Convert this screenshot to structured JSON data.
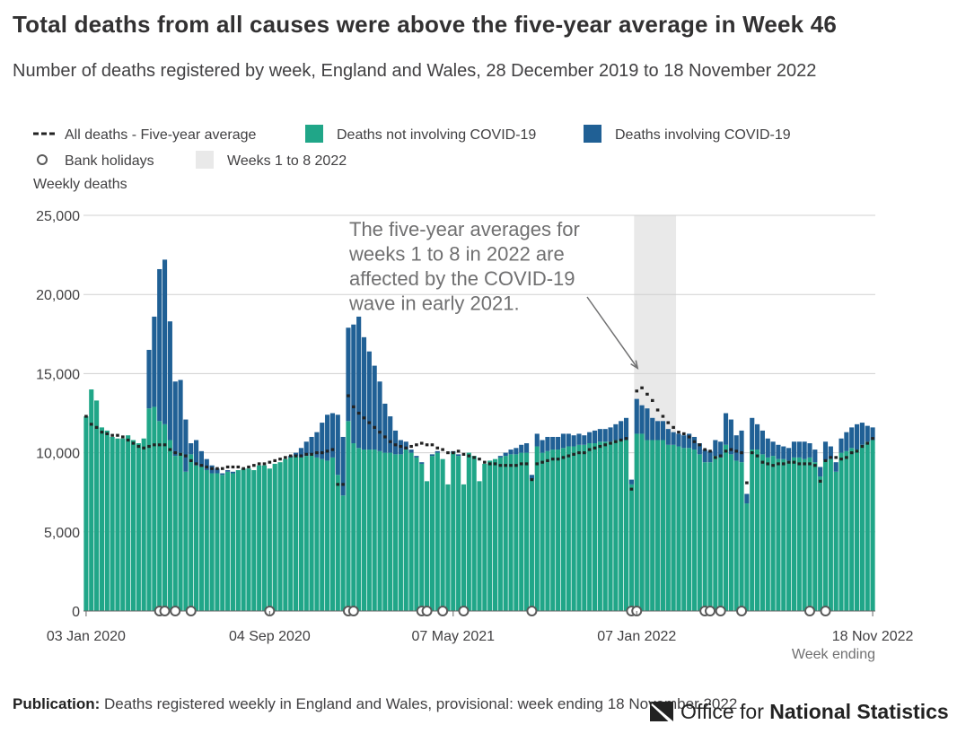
{
  "header": {
    "title": "Total deaths from all causes were above the five-year average in Week 46",
    "subtitle": "Number of deaths registered by week, England and Wales, 28 December 2019 to 18 November 2022"
  },
  "footer": {
    "publication_label": "Publication:",
    "publication_text": "Deaths registered weekly in England and Wales, provisional: week ending 18 November 2022",
    "logo_prefix": "Office for",
    "logo_strong": "National Statistics"
  },
  "colors": {
    "not_covid": "#20a688",
    "covid": "#206095",
    "average": "#222222",
    "shade": "#e9e9e9",
    "grid": "#d0d0d0"
  },
  "chart_data": {
    "type": "bar",
    "stacked": true,
    "legend": {
      "placement": "top-left",
      "items": [
        {
          "key": "average",
          "label": "All deaths - Five-year average",
          "symbol": "dashed-line"
        },
        {
          "key": "not_covid",
          "label": "Deaths not involving COVID-19",
          "symbol": "square"
        },
        {
          "key": "covid",
          "label": "Deaths involving COVID-19",
          "symbol": "square"
        },
        {
          "key": "holiday",
          "label": "Bank holidays",
          "symbol": "circle"
        },
        {
          "key": "shade",
          "label": "Weeks 1 to 8 2022",
          "symbol": "square"
        }
      ]
    },
    "ylabel": "Weekly deaths",
    "xlabel": "Week ending",
    "ylim": [
      0,
      25000
    ],
    "yticks": [
      0,
      5000,
      10000,
      15000,
      20000,
      25000
    ],
    "ytick_labels": [
      "0",
      "5,000",
      "10,000",
      "15,000",
      "20,000",
      "25,000"
    ],
    "xtick_labels": [
      {
        "week": 1,
        "label": "03 Jan 2020"
      },
      {
        "week": 36,
        "label": "04 Sep 2020"
      },
      {
        "week": 71,
        "label": "07 May 2021"
      },
      {
        "week": 106,
        "label": "07 Jan 2022"
      },
      {
        "week": 151,
        "label": "18 Nov 2022"
      }
    ],
    "n_weeks": 151,
    "shaded_weeks": [
      106,
      113
    ],
    "annotation": {
      "lines": [
        "The five-year averages for",
        "weeks 1 to 8 in 2022 are",
        "affected by the COVID-19",
        "wave in early 2021."
      ],
      "arrow_to_week": 106,
      "arrow_to_value": 15000
    },
    "bank_holiday_weeks": [
      15,
      16,
      18,
      21,
      36,
      51,
      52,
      65,
      66,
      69,
      73,
      86,
      105,
      106,
      119,
      120,
      122,
      126,
      139,
      142
    ],
    "not_covid": [
      12300,
      14000,
      13300,
      11600,
      11400,
      11000,
      10900,
      10900,
      11100,
      10800,
      10600,
      10900,
      12800,
      12900,
      12000,
      11800,
      10800,
      9800,
      10000,
      8800,
      9900,
      9200,
      9100,
      8900,
      8700,
      8700,
      8600,
      8800,
      8700,
      8900,
      9000,
      9000,
      8900,
      9200,
      9200,
      9000,
      9300,
      9400,
      9600,
      9700,
      9800,
      9700,
      9800,
      9900,
      9700,
      9600,
      9500,
      9700,
      8600,
      7300,
      12000,
      10600,
      10300,
      10200,
      10200,
      10200,
      10100,
      10000,
      10000,
      9900,
      9900,
      10200,
      10000,
      9700,
      9300,
      8200,
      9800,
      10000,
      9600,
      8000,
      10000,
      9800,
      8000,
      10000,
      9800,
      8200,
      9300,
      9500,
      9600,
      9700,
      9800,
      9900,
      9900,
      10000,
      10000,
      8300,
      10400,
      10000,
      10100,
      10200,
      10200,
      10300,
      10400,
      10400,
      10500,
      10500,
      10600,
      10600,
      10700,
      10700,
      10700,
      10800,
      10800,
      10800,
      8000,
      11200,
      11200,
      10800,
      10800,
      10800,
      10800,
      10500,
      10500,
      10400,
      10300,
      10300,
      10200,
      9900,
      9400,
      9400,
      9800,
      9700,
      10500,
      9900,
      9500,
      9400,
      6800,
      10200,
      10200,
      9900,
      9700,
      9800,
      9600,
      9600,
      9500,
      9700,
      9700,
      9600,
      9700,
      9400,
      8500,
      9500,
      9600,
      8800,
      10000,
      10100,
      10300,
      10200,
      10500,
      10700,
      10800
    ],
    "covid": [
      0,
      0,
      0,
      0,
      0,
      0,
      0,
      0,
      0,
      0,
      0,
      0,
      3700,
      5700,
      9600,
      10400,
      7500,
      4700,
      4600,
      3300,
      700,
      1600,
      1000,
      700,
      500,
      300,
      100,
      100,
      100,
      0,
      0,
      0,
      0,
      0,
      0,
      0,
      0,
      0,
      0,
      100,
      200,
      600,
      900,
      1100,
      1600,
      2300,
      2900,
      2800,
      3800,
      3700,
      5900,
      7500,
      8300,
      7100,
      6200,
      5300,
      4400,
      3100,
      2300,
      1500,
      900,
      500,
      200,
      100,
      100,
      0,
      100,
      100,
      0,
      0,
      100,
      100,
      0,
      0,
      0,
      0,
      0,
      0,
      0,
      100,
      200,
      300,
      400,
      500,
      600,
      300,
      800,
      800,
      900,
      800,
      800,
      900,
      800,
      700,
      700,
      600,
      700,
      800,
      800,
      800,
      900,
      1000,
      1200,
      1400,
      300,
      2200,
      1800,
      2000,
      1400,
      1200,
      1200,
      1000,
      800,
      800,
      800,
      900,
      800,
      700,
      800,
      700,
      1000,
      1000,
      2000,
      2200,
      1600,
      2000,
      600,
      2000,
      1600,
      1500,
      1200,
      900,
      900,
      800,
      800,
      1000,
      1000,
      1100,
      900,
      800,
      600,
      1200,
      800,
      600,
      900,
      1200,
      1300,
      1600,
      1400,
      1000,
      800
    ],
    "average": [
      12300,
      11800,
      11600,
      11300,
      11200,
      11100,
      11100,
      11000,
      10800,
      10600,
      10400,
      10300,
      10400,
      10500,
      10500,
      10500,
      10200,
      10000,
      9900,
      9800,
      9500,
      9300,
      9200,
      9100,
      9000,
      9000,
      9000,
      9100,
      9100,
      9100,
      9000,
      9100,
      9200,
      9300,
      9300,
      9400,
      9500,
      9600,
      9700,
      9800,
      9800,
      9800,
      9900,
      9900,
      10000,
      10000,
      10100,
      10200,
      8000,
      8000,
      13600,
      12900,
      12500,
      12200,
      11900,
      11600,
      11300,
      11000,
      10700,
      10500,
      10400,
      10300,
      10400,
      10500,
      10600,
      10500,
      10500,
      10300,
      10200,
      10000,
      10000,
      10100,
      9900,
      9800,
      9700,
      9600,
      9400,
      9300,
      9300,
      9200,
      9200,
      9200,
      9200,
      9300,
      9300,
      8300,
      9300,
      9400,
      9500,
      9600,
      9600,
      9700,
      9800,
      9900,
      10000,
      10000,
      10200,
      10300,
      10400,
      10500,
      10600,
      10700,
      10800,
      10900,
      7700,
      13900,
      14100,
      13700,
      13300,
      12700,
      12300,
      11900,
      11600,
      11300,
      11200,
      11000,
      10700,
      10500,
      10200,
      10100,
      9700,
      9800,
      10100,
      10200,
      10100,
      10000,
      8100,
      10000,
      9800,
      9400,
      9300,
      9200,
      9300,
      9300,
      9400,
      9400,
      9300,
      9300,
      9300,
      9200,
      8200,
      9500,
      9700,
      9700,
      9600,
      9700,
      10000,
      10100,
      10400,
      10600,
      10900
    ]
  }
}
